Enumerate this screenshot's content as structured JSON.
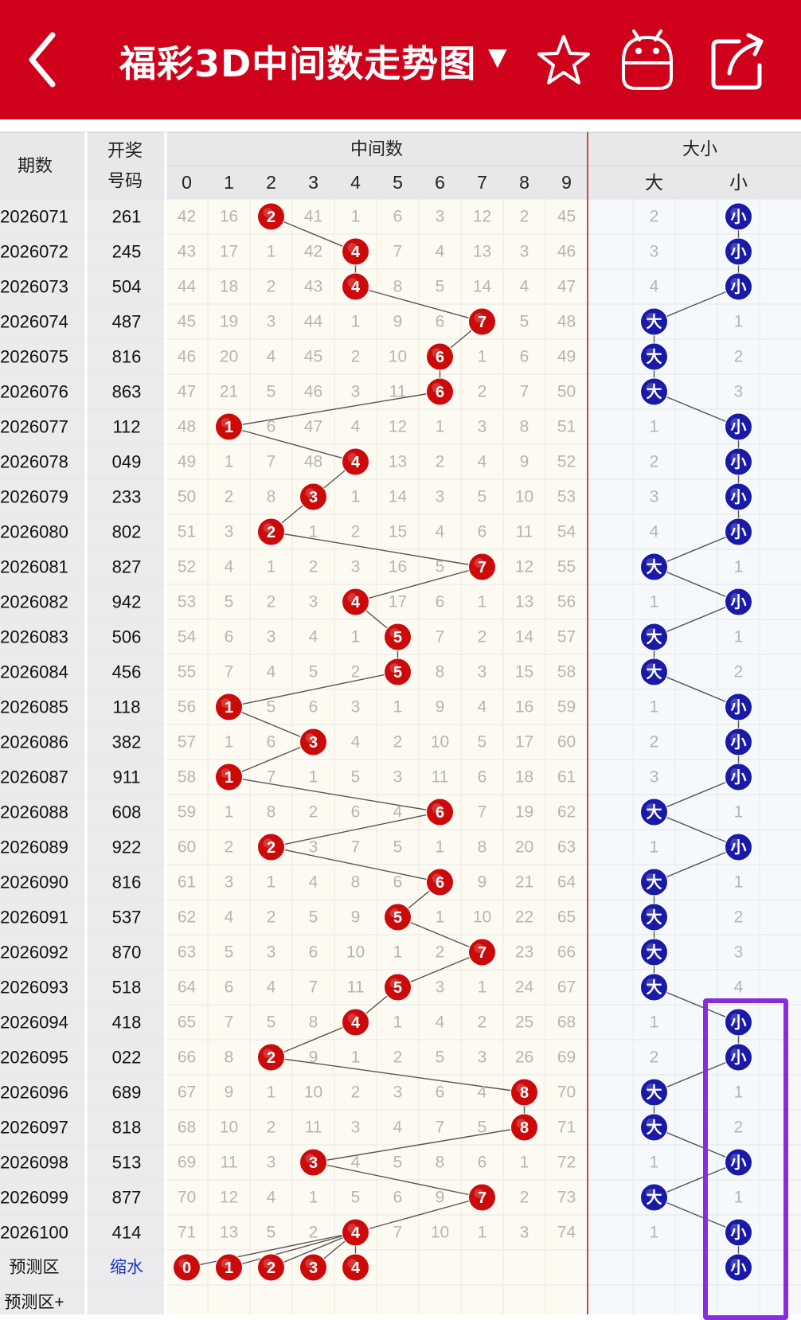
{
  "header": {
    "title": "福彩3D中间数走势图",
    "title_caret": "▼",
    "back_icon": "back-arrow-icon",
    "star_icon": "star-icon",
    "android_icon": "android-icon",
    "share_icon": "share-icon",
    "bar_color": "#d0021b"
  },
  "table": {
    "col_period": "期数",
    "col_prize_line1": "开奖",
    "col_prize_line2": "号码",
    "group_middle": "中间数",
    "group_size": "大小",
    "digits": [
      "0",
      "1",
      "2",
      "3",
      "4",
      "5",
      "6",
      "7",
      "8",
      "9"
    ],
    "size_labels": [
      "大",
      "小"
    ],
    "rows": [
      {
        "period": "2026071",
        "num": "261",
        "mid": [
          42,
          16,
          "2",
          41,
          1,
          6,
          3,
          12,
          2,
          45
        ],
        "big": "2",
        "small": "小",
        "size": "small"
      },
      {
        "period": "2026072",
        "num": "245",
        "mid": [
          43,
          17,
          1,
          42,
          "4",
          7,
          4,
          13,
          3,
          46
        ],
        "big": "3",
        "small": "小",
        "size": "small"
      },
      {
        "period": "2026073",
        "num": "504",
        "mid": [
          44,
          18,
          2,
          43,
          "4",
          8,
          5,
          14,
          4,
          47
        ],
        "big": "4",
        "small": "小",
        "size": "small"
      },
      {
        "period": "2026074",
        "num": "487",
        "mid": [
          45,
          19,
          3,
          44,
          1,
          9,
          6,
          "7",
          5,
          48
        ],
        "big": "大",
        "small": "1",
        "size": "big"
      },
      {
        "period": "2026075",
        "num": "816",
        "mid": [
          46,
          20,
          4,
          45,
          2,
          10,
          "6",
          1,
          6,
          49
        ],
        "big": "大",
        "small": "2",
        "size": "big"
      },
      {
        "period": "2026076",
        "num": "863",
        "mid": [
          47,
          21,
          5,
          46,
          3,
          11,
          "6",
          2,
          7,
          50
        ],
        "big": "大",
        "small": "3",
        "size": "big"
      },
      {
        "period": "2026077",
        "num": "112",
        "mid": [
          48,
          "1",
          6,
          47,
          4,
          12,
          1,
          3,
          8,
          51
        ],
        "big": "1",
        "small": "小",
        "size": "small"
      },
      {
        "period": "2026078",
        "num": "049",
        "mid": [
          49,
          1,
          7,
          48,
          "4",
          13,
          2,
          4,
          9,
          52
        ],
        "big": "2",
        "small": "小",
        "size": "small"
      },
      {
        "period": "2026079",
        "num": "233",
        "mid": [
          50,
          2,
          8,
          "3",
          1,
          14,
          3,
          5,
          10,
          53
        ],
        "big": "3",
        "small": "小",
        "size": "small"
      },
      {
        "period": "2026080",
        "num": "802",
        "mid": [
          51,
          3,
          "2",
          1,
          2,
          15,
          4,
          6,
          11,
          54
        ],
        "big": "4",
        "small": "小",
        "size": "small"
      },
      {
        "period": "2026081",
        "num": "827",
        "mid": [
          52,
          4,
          1,
          2,
          3,
          16,
          5,
          "7",
          12,
          55
        ],
        "big": "大",
        "small": "1",
        "size": "big"
      },
      {
        "period": "2026082",
        "num": "942",
        "mid": [
          53,
          5,
          2,
          3,
          "4",
          17,
          6,
          1,
          13,
          56
        ],
        "big": "1",
        "small": "小",
        "size": "small"
      },
      {
        "period": "2026083",
        "num": "506",
        "mid": [
          54,
          6,
          3,
          4,
          1,
          "5",
          7,
          2,
          14,
          57
        ],
        "big": "大",
        "small": "1",
        "size": "big"
      },
      {
        "period": "2026084",
        "num": "456",
        "mid": [
          55,
          7,
          4,
          5,
          2,
          "5",
          8,
          3,
          15,
          58
        ],
        "big": "大",
        "small": "2",
        "size": "big"
      },
      {
        "period": "2026085",
        "num": "118",
        "mid": [
          56,
          "1",
          5,
          6,
          3,
          1,
          9,
          4,
          16,
          59
        ],
        "big": "1",
        "small": "小",
        "size": "small"
      },
      {
        "period": "2026086",
        "num": "382",
        "mid": [
          57,
          1,
          6,
          "3",
          4,
          2,
          10,
          5,
          17,
          60
        ],
        "big": "2",
        "small": "小",
        "size": "small"
      },
      {
        "period": "2026087",
        "num": "911",
        "mid": [
          58,
          "1",
          7,
          1,
          5,
          3,
          11,
          6,
          18,
          61
        ],
        "big": "3",
        "small": "小",
        "size": "small"
      },
      {
        "period": "2026088",
        "num": "608",
        "mid": [
          59,
          1,
          8,
          2,
          6,
          4,
          "6",
          7,
          19,
          62
        ],
        "big": "大",
        "small": "1",
        "size": "big"
      },
      {
        "period": "2026089",
        "num": "922",
        "mid": [
          60,
          2,
          "2",
          3,
          7,
          5,
          1,
          8,
          20,
          63
        ],
        "big": "1",
        "small": "小",
        "size": "small"
      },
      {
        "period": "2026090",
        "num": "816",
        "mid": [
          61,
          3,
          1,
          4,
          8,
          6,
          "6",
          9,
          21,
          64
        ],
        "big": "大",
        "small": "1",
        "size": "big"
      },
      {
        "period": "2026091",
        "num": "537",
        "mid": [
          62,
          4,
          2,
          5,
          9,
          "5",
          1,
          10,
          22,
          65
        ],
        "big": "大",
        "small": "2",
        "size": "big"
      },
      {
        "period": "2026092",
        "num": "870",
        "mid": [
          63,
          5,
          3,
          6,
          10,
          1,
          2,
          "7",
          23,
          66
        ],
        "big": "大",
        "small": "3",
        "size": "big"
      },
      {
        "period": "2026093",
        "num": "518",
        "mid": [
          64,
          6,
          4,
          7,
          11,
          "5",
          3,
          1,
          24,
          67
        ],
        "big": "大",
        "small": "4",
        "size": "big"
      },
      {
        "period": "2026094",
        "num": "418",
        "mid": [
          65,
          7,
          5,
          8,
          "4",
          1,
          4,
          2,
          25,
          68
        ],
        "big": "1",
        "small": "小",
        "size": "small"
      },
      {
        "period": "2026095",
        "num": "022",
        "mid": [
          66,
          8,
          "2",
          9,
          1,
          2,
          5,
          3,
          26,
          69
        ],
        "big": "2",
        "small": "小",
        "size": "small"
      },
      {
        "period": "2026096",
        "num": "689",
        "mid": [
          67,
          9,
          1,
          10,
          2,
          3,
          6,
          4,
          "8",
          70
        ],
        "big": "大",
        "small": "1",
        "size": "big"
      },
      {
        "period": "2026097",
        "num": "818",
        "mid": [
          68,
          10,
          2,
          11,
          3,
          4,
          7,
          5,
          "8",
          71
        ],
        "big": "大",
        "small": "2",
        "size": "big"
      },
      {
        "period": "2026098",
        "num": "513",
        "mid": [
          69,
          11,
          3,
          "3",
          4,
          5,
          8,
          6,
          1,
          72
        ],
        "big": "1",
        "small": "小",
        "size": "small"
      },
      {
        "period": "2026099",
        "num": "877",
        "mid": [
          70,
          12,
          4,
          1,
          5,
          6,
          9,
          "7",
          2,
          73
        ],
        "big": "大",
        "small": "1",
        "size": "big"
      },
      {
        "period": "2026100",
        "num": "414",
        "mid": [
          71,
          13,
          5,
          2,
          "4",
          7,
          10,
          1,
          3,
          74
        ],
        "big": "1",
        "small": "小",
        "size": "small"
      }
    ],
    "predict_label": "预测区",
    "predict_link": "缩水",
    "predict_digits": [
      "0",
      "1",
      "2",
      "3",
      "4"
    ],
    "predict_small": "小",
    "predict_plus": "预测区+"
  },
  "colors": {
    "red_ball": "#cc0a0a",
    "blue_ball": "#1a1aa8",
    "missing_text": "#b5b5b5",
    "highlight_box": "#8a2be2"
  }
}
